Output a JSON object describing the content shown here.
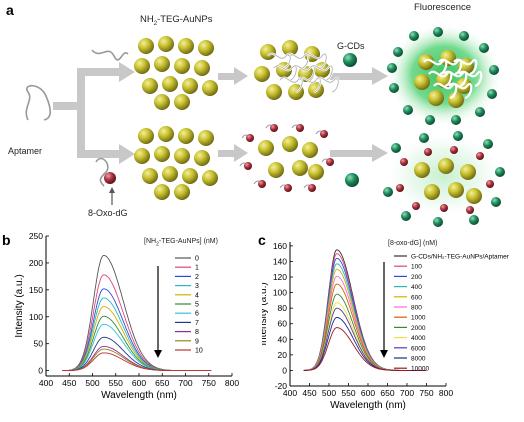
{
  "panel_a": {
    "label": "a",
    "title_prefix": "NH",
    "title_sub": "2",
    "title_suffix": "-TEG-AuNPs",
    "fluorescence": "Fluorescence",
    "gcds": "G-CDs",
    "aptamer": "Aptamer",
    "target": "8-Oxo-dG",
    "colors": {
      "aunp": "#c9c232",
      "gcd": "#1f8a5c",
      "oxo": "#a8323d",
      "glow": "#4fd070",
      "arrow": "#c8c8c8"
    }
  },
  "chart_data": [
    {
      "type": "line",
      "panel_label": "b",
      "xlabel": "Wavelength (nm)",
      "ylabel": "Intensity (a.u.)",
      "xlim": [
        400,
        800
      ],
      "ylim": [
        -10,
        250
      ],
      "xticks": [
        400,
        450,
        500,
        550,
        600,
        650,
        700,
        750,
        800
      ],
      "yticks": [
        0,
        50,
        100,
        150,
        200,
        250
      ],
      "x_range": [
        435,
        755
      ],
      "peak_x": 524,
      "legend_title_prefix": "[NH",
      "legend_title_sub": "2",
      "legend_title_suffix": "-TEG-AuNPs] (nM)",
      "legend_position": "right",
      "series": [
        {
          "name": "0",
          "peak": 214,
          "color": "#555555"
        },
        {
          "name": "1",
          "peak": 178,
          "color": "#e0457b"
        },
        {
          "name": "2",
          "peak": 152,
          "color": "#2b4bd8"
        },
        {
          "name": "3",
          "peak": 135,
          "color": "#2fb4c0"
        },
        {
          "name": "4",
          "peak": 119,
          "color": "#d4b000"
        },
        {
          "name": "5",
          "peak": 101,
          "color": "#2f8a3a"
        },
        {
          "name": "6",
          "peak": 86,
          "color": "#33c2d8"
        },
        {
          "name": "7",
          "peak": 62,
          "color": "#1f3a8a"
        },
        {
          "name": "8",
          "peak": 45,
          "color": "#9a2a9a"
        },
        {
          "name": "9",
          "peak": 40,
          "color": "#8a8a20"
        },
        {
          "name": "10",
          "peak": 33,
          "color": "#c03030"
        }
      ]
    },
    {
      "type": "line",
      "panel_label": "c",
      "xlabel": "Wavelength (nm)",
      "ylabel": "Intensity (a.u.)",
      "xlim": [
        400,
        800
      ],
      "ylim": [
        -20,
        165
      ],
      "xticks": [
        400,
        450,
        500,
        550,
        600,
        650,
        700,
        750,
        800
      ],
      "yticks": [
        -20,
        0,
        20,
        40,
        60,
        80,
        100,
        120,
        140,
        160
      ],
      "x_range": [
        435,
        750
      ],
      "peak_x": 520,
      "legend_title": "[8-oxo-dG] (nM)",
      "legend_position": "right",
      "series": [
        {
          "name": "G-CDs/NH₂-TEG-AuNPs/Aptamer",
          "peak": 155,
          "color": "#333333"
        },
        {
          "name": "100",
          "peak": 150,
          "color": "#e0457b"
        },
        {
          "name": "200",
          "peak": 144,
          "color": "#2b4bd8"
        },
        {
          "name": "400",
          "peak": 137,
          "color": "#2fb4c0"
        },
        {
          "name": "600",
          "peak": 130,
          "color": "#d4b000"
        },
        {
          "name": "800",
          "peak": 121,
          "color": "#ff66cc"
        },
        {
          "name": "1000",
          "peak": 111,
          "color": "#cc6600"
        },
        {
          "name": "2000",
          "peak": 98,
          "color": "#2f8a3a"
        },
        {
          "name": "4000",
          "peak": 87,
          "color": "#f0e040"
        },
        {
          "name": "6000",
          "peak": 80,
          "color": "#5a3aa0"
        },
        {
          "name": "8000",
          "peak": 68,
          "color": "#1a2a90"
        },
        {
          "name": "10000",
          "peak": 55,
          "color": "#a01818"
        }
      ]
    }
  ]
}
